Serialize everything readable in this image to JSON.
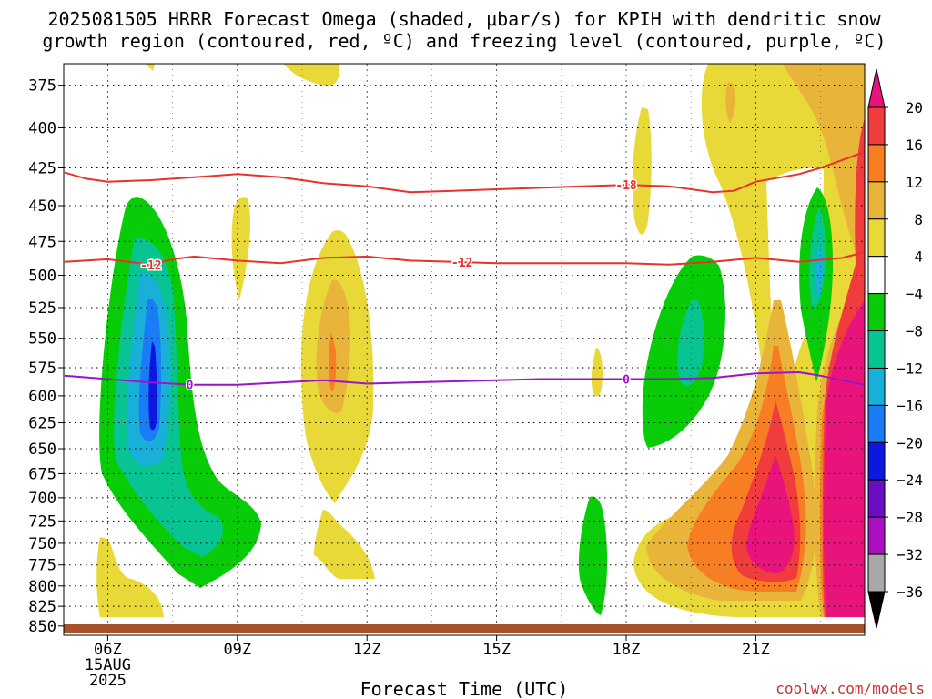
{
  "chart_data": {
    "type": "heatmap",
    "title_line1": "2025081505 HRRR Forecast Omega (shaded, μbar/s) for KPIH with dendritic snow",
    "title_line2": "growth region (contoured, red, ºC) and freezing level (contoured, purple, ºC)",
    "xlabel": "Forecast Time (UTC)",
    "credit": "coolwx.com/models",
    "x_unit": "hours UTC",
    "xlim": [
      4.98,
      23.52
    ],
    "x_ticks": [
      {
        "h": 6,
        "label": "06Z",
        "sub1": "15AUG",
        "sub2": "2025"
      },
      {
        "h": 9,
        "label": "09Z"
      },
      {
        "h": 12,
        "label": "12Z"
      },
      {
        "h": 15,
        "label": "15Z"
      },
      {
        "h": 18,
        "label": "18Z"
      },
      {
        "h": 21,
        "label": "21Z"
      }
    ],
    "y_scale": "log-pressure (inverted)",
    "ylim": [
      363,
      862
    ],
    "y_ticks": [
      375,
      400,
      425,
      450,
      475,
      500,
      525,
      550,
      575,
      600,
      625,
      650,
      675,
      700,
      725,
      750,
      775,
      800,
      825,
      850
    ],
    "colorbar": {
      "labels": [
        "20",
        "16",
        "12",
        "8",
        "4",
        "−4",
        "−8",
        "−12",
        "−16",
        "−20",
        "−24",
        "−28",
        "−32",
        "−36"
      ],
      "boundaries": [
        20,
        16,
        12,
        8,
        4,
        -4,
        -8,
        -12,
        -16,
        -20,
        -24,
        -28,
        -32,
        -36
      ],
      "colors": [
        "#f03c3c",
        "#f87e24",
        "#e8b43a",
        "#e8d838",
        "#ffffff",
        "#08cc08",
        "#08c492",
        "#18b0d8",
        "#1a7cf6",
        "#0c18e0",
        "#6a0ec4",
        "#a810c0",
        "#a8a8a8"
      ],
      "cap_top_color": "#e8147c",
      "cap_bottom_color": "#000000"
    },
    "temperature_contours": [
      {
        "label": "-18",
        "color": "#e8322c",
        "label_h": 18.0,
        "points": [
          [
            5.0,
            428
          ],
          [
            5.5,
            432
          ],
          [
            6.0,
            434
          ],
          [
            7.0,
            433
          ],
          [
            8.0,
            431
          ],
          [
            9.0,
            429
          ],
          [
            10.0,
            431
          ],
          [
            11.0,
            435
          ],
          [
            12.0,
            437
          ],
          [
            13.0,
            441
          ],
          [
            14.0,
            440
          ],
          [
            15.0,
            439
          ],
          [
            16.0,
            438
          ],
          [
            17.0,
            437
          ],
          [
            18.0,
            436
          ],
          [
            19.0,
            437
          ],
          [
            20.0,
            441
          ],
          [
            20.5,
            440
          ],
          [
            21.0,
            434
          ],
          [
            22.0,
            429
          ],
          [
            22.5,
            425
          ],
          [
            23.0,
            420
          ],
          [
            23.5,
            415
          ]
        ]
      },
      {
        "label": "-12",
        "color": "#e8322c",
        "label_h": [
          7.0,
          14.2
        ],
        "points": [
          [
            5.0,
            490
          ],
          [
            6.0,
            488
          ],
          [
            7.0,
            492
          ],
          [
            7.5,
            488
          ],
          [
            8.0,
            486
          ],
          [
            9.0,
            489
          ],
          [
            10.0,
            491
          ],
          [
            11.0,
            487
          ],
          [
            12.0,
            486
          ],
          [
            13.0,
            489
          ],
          [
            14.0,
            490
          ],
          [
            15.0,
            491
          ],
          [
            16.0,
            491
          ],
          [
            17.0,
            491
          ],
          [
            18.0,
            491
          ],
          [
            19.0,
            492
          ],
          [
            20.0,
            490
          ],
          [
            21.0,
            487
          ],
          [
            22.0,
            490
          ],
          [
            23.0,
            487
          ],
          [
            23.5,
            483
          ]
        ]
      },
      {
        "label": "0",
        "color": "#9a14c8",
        "label_h": [
          7.9,
          18.0
        ],
        "points": [
          [
            5.0,
            582
          ],
          [
            6.0,
            585
          ],
          [
            7.0,
            588
          ],
          [
            8.0,
            590
          ],
          [
            9.0,
            590
          ],
          [
            10.0,
            588
          ],
          [
            11.0,
            586
          ],
          [
            12.0,
            589
          ],
          [
            13.0,
            588
          ],
          [
            14.0,
            587
          ],
          [
            15.0,
            586
          ],
          [
            16.0,
            585
          ],
          [
            17.0,
            585
          ],
          [
            18.0,
            585
          ],
          [
            19.0,
            585
          ],
          [
            20.0,
            584
          ],
          [
            21.0,
            580
          ],
          [
            22.0,
            579
          ],
          [
            22.5,
            582
          ],
          [
            23.0,
            586
          ],
          [
            23.5,
            590
          ]
        ]
      }
    ]
  }
}
